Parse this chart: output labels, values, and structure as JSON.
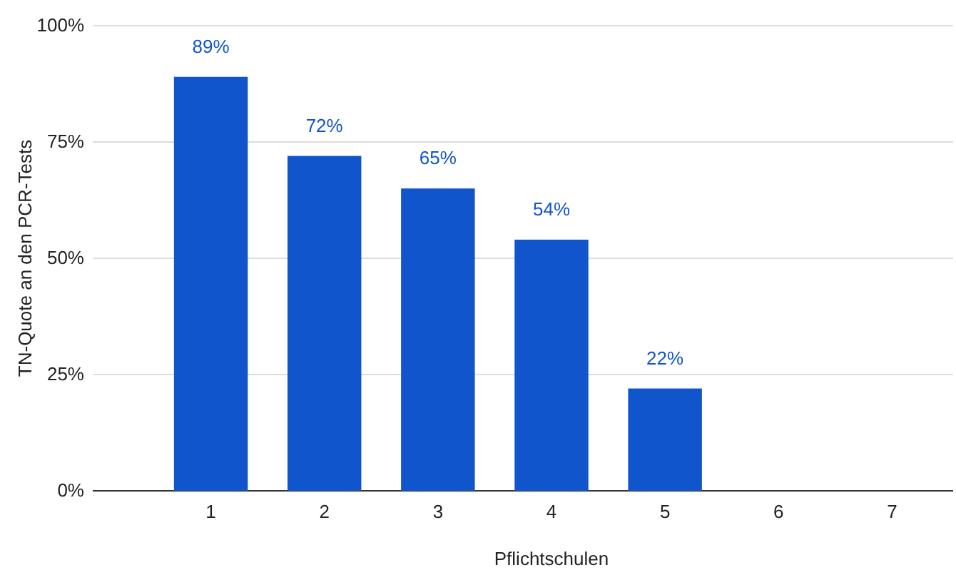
{
  "chart_data": {
    "type": "bar",
    "xlabel": "Pflichtschulen",
    "ylabel": "TN-Quote an den PCR-Tests",
    "categories": [
      "1",
      "2",
      "3",
      "4",
      "5",
      "6",
      "7"
    ],
    "values": [
      89,
      72,
      65,
      54,
      22,
      null,
      null
    ],
    "value_labels": [
      "89%",
      "72%",
      "65%",
      "54%",
      "22%",
      null,
      null
    ],
    "color": "#1155cc",
    "ylim": [
      0,
      100
    ],
    "yticks": [
      {
        "value": 0,
        "label": "0%"
      },
      {
        "value": 25,
        "label": "25%"
      },
      {
        "value": 50,
        "label": "50%"
      },
      {
        "value": 75,
        "label": "75%"
      },
      {
        "value": 100,
        "label": "100%"
      }
    ],
    "grid": "y"
  }
}
